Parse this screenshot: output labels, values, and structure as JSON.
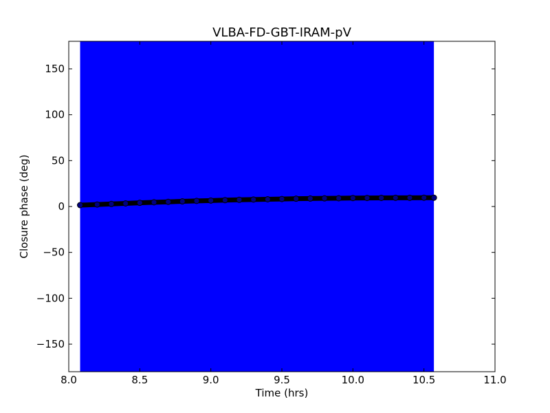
{
  "chart_data": {
    "type": "scatter",
    "title": "VLBA-FD-GBT-IRAM-pV",
    "xlabel": "Time (hrs)",
    "ylabel": "Closure phase (deg)",
    "xlim": [
      8.0,
      11.0
    ],
    "ylim": [
      -180,
      180
    ],
    "xticks": [
      8.0,
      8.5,
      9.0,
      9.5,
      10.0,
      10.5,
      11.0
    ],
    "xtick_labels": [
      "8.0",
      "8.5",
      "9.0",
      "9.5",
      "10.0",
      "10.5",
      "11.0"
    ],
    "yticks": [
      -150,
      -100,
      -50,
      0,
      50,
      100,
      150
    ],
    "ytick_labels": [
      "−150",
      "−100",
      "−50",
      "0",
      "50",
      "100",
      "150"
    ],
    "grid": false,
    "series": [
      {
        "kind": "error-band",
        "color": "#0000ff",
        "x_start": 8.08,
        "x_end": 10.57,
        "y_low": -180,
        "y_high": 180
      },
      {
        "kind": "points",
        "marker_color": "#000080",
        "x": [
          8.08,
          8.2,
          8.3,
          8.4,
          8.5,
          8.6,
          8.7,
          8.8,
          8.9,
          9.0,
          9.1,
          9.2,
          9.3,
          9.4,
          9.5,
          9.6,
          9.7,
          9.8,
          9.9,
          10.0,
          10.1,
          10.2,
          10.3,
          10.4,
          10.5,
          10.57
        ],
        "y": [
          1.5,
          2.2,
          2.8,
          3.4,
          4.0,
          4.6,
          5.1,
          5.6,
          6.1,
          6.5,
          6.9,
          7.3,
          7.6,
          7.9,
          8.2,
          8.5,
          8.7,
          8.9,
          9.0,
          9.2,
          9.3,
          9.4,
          9.5,
          9.5,
          9.6,
          9.6
        ]
      }
    ]
  }
}
